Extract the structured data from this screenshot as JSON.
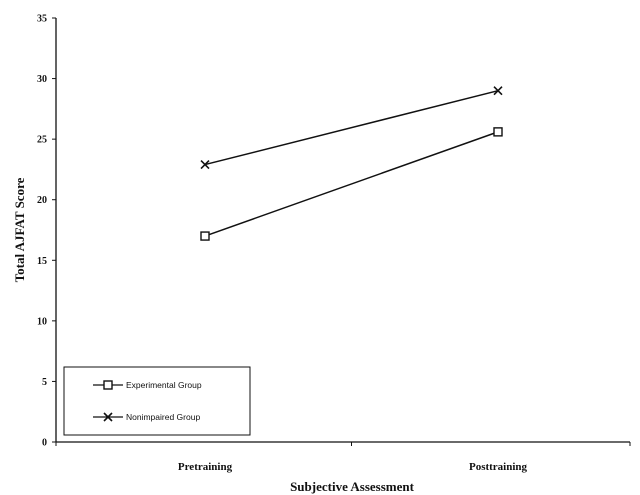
{
  "chart_data": {
    "type": "line",
    "title": "",
    "xlabel": "Subjective Assessment",
    "ylabel": "Total AJFAT Score",
    "categories": [
      "Pretraining",
      "Posttraining"
    ],
    "ylim": [
      0,
      35
    ],
    "yticks": [
      0,
      5,
      10,
      15,
      20,
      25,
      30,
      35
    ],
    "grid": false,
    "legend_position": "bottom-left",
    "series": [
      {
        "name": "Experimental Group",
        "marker": "square",
        "color": "#111111",
        "values": [
          17,
          25.6
        ]
      },
      {
        "name": "Nonimpaired Group",
        "marker": "x",
        "color": "#111111",
        "values": [
          22.9,
          29
        ]
      }
    ]
  }
}
